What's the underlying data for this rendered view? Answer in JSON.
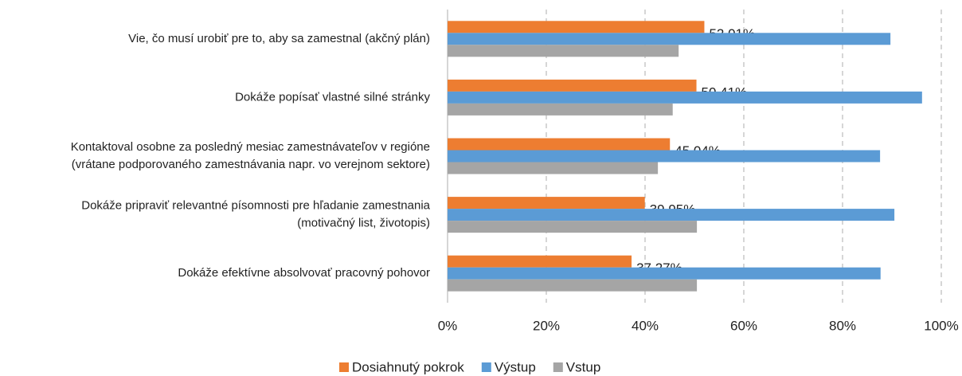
{
  "chart_data": {
    "type": "hbar",
    "categories": [
      [
        "Vie, čo musí urobiť pre to, aby sa zamestnal (akčný plán)"
      ],
      [
        "Dokáže popísať vlastné silné stránky"
      ],
      [
        "Kontaktoval osobne za posledný mesiac zamestnávateľov v regióne",
        "(vrátane podporovaného zamestnávania napr. vo verejnom sektore)"
      ],
      [
        "Dokáže pripraviť relevantné písomnosti pre hľadanie zamestnania",
        "(motivačný list, životopis)"
      ],
      [
        "Dokáže efektívne absolvovať pracovný pohovor"
      ]
    ],
    "series": [
      {
        "name": "Dosiahnutý pokrok",
        "color": "#ed7d31",
        "values": [
          52.01,
          50.41,
          45.04,
          39.95,
          37.27
        ],
        "value_labels": [
          "52,01%",
          "50,41%",
          "45,04%",
          "39,95%",
          "37,27%"
        ]
      },
      {
        "name": "Výstup",
        "color": "#5b9bd5",
        "values": [
          89.7,
          96.1,
          87.6,
          90.5,
          87.7
        ]
      },
      {
        "name": "Vstup",
        "color": "#a5a5a5",
        "values": [
          46.8,
          45.6,
          42.6,
          50.5,
          50.5
        ]
      }
    ],
    "xlim": [
      0,
      100
    ],
    "xticks": [
      {
        "value": 0,
        "label": "0%"
      },
      {
        "value": 20,
        "label": "20%"
      },
      {
        "value": 40,
        "label": "40%"
      },
      {
        "value": 60,
        "label": "60%"
      },
      {
        "value": 80,
        "label": "80%"
      },
      {
        "value": 100,
        "label": "100%"
      }
    ],
    "grid": true,
    "legend": "bottom"
  }
}
